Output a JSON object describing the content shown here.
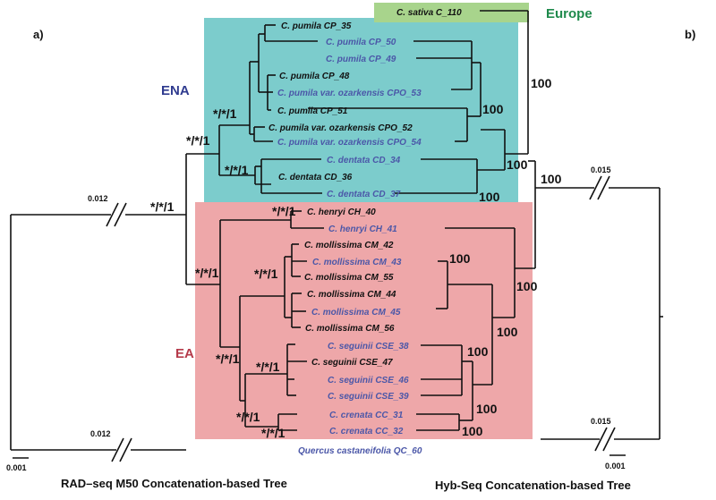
{
  "panels": {
    "a": "a)",
    "b": "b)"
  },
  "regions": {
    "ena": "ENA",
    "ea": "EA",
    "europe": "Europe"
  },
  "colors": {
    "ena_bg": "#7ccccc",
    "ea_bg": "#eea7a9",
    "europe_bg": "#a8d48c",
    "ena_label": "#2f3b8f",
    "ea_label": "#b53a4a",
    "europe_label": "#1f8a4c",
    "taxon_blue": "#4b57a8",
    "taxon_black": "#111111"
  },
  "taxa": [
    {
      "name": "C. sativa C_110",
      "color": "black"
    },
    {
      "name": "C. pumila CP_35",
      "color": "black"
    },
    {
      "name": "C. pumila CP_50",
      "color": "blue"
    },
    {
      "name": "C. pumila CP_49",
      "color": "blue"
    },
    {
      "name": "C. pumila CP_48",
      "color": "black"
    },
    {
      "name": "C. pumila var. ozarkensis CPO_53",
      "color": "blue"
    },
    {
      "name": "C. pumila CP_51",
      "color": "black"
    },
    {
      "name": "C. pumila var. ozarkensis CPO_52",
      "color": "black"
    },
    {
      "name": "C. pumila var. ozarkensis CPO_54",
      "color": "blue"
    },
    {
      "name": "C. dentata CD_34",
      "color": "blue"
    },
    {
      "name": "C. dentata CD_36",
      "color": "black"
    },
    {
      "name": "C. dentata CD_37",
      "color": "blue"
    },
    {
      "name": "C. henryi CH_40",
      "color": "black"
    },
    {
      "name": "C. henryi CH_41",
      "color": "blue"
    },
    {
      "name": "C. mollissima CM_42",
      "color": "black"
    },
    {
      "name": "C. mollissima CM_43",
      "color": "blue"
    },
    {
      "name": "C. mollissima CM_55",
      "color": "black"
    },
    {
      "name": "C. mollissima CM_44",
      "color": "black"
    },
    {
      "name": "C. mollissima CM_45",
      "color": "blue"
    },
    {
      "name": "C. mollissima CM_56",
      "color": "black"
    },
    {
      "name": "C. seguinii CSE_38",
      "color": "blue"
    },
    {
      "name": "C. seguinii CSE_47",
      "color": "black"
    },
    {
      "name": "C. seguinii CSE_46",
      "color": "blue"
    },
    {
      "name": "C. seguinii CSE_39",
      "color": "blue"
    },
    {
      "name": "C. crenata CC_31",
      "color": "blue"
    },
    {
      "name": "C. crenata CC_32",
      "color": "blue"
    },
    {
      "name": "Quercus castaneifolia QC_60",
      "color": "blue"
    }
  ],
  "support_left": {
    "root": "*/*/1",
    "ena_ea": "*/*/1",
    "ena": "*/*/1",
    "dentata": "*/*/1",
    "henryi": "*/*/1",
    "ea_core": "*/*/1",
    "mollissima": "*/*/1",
    "ea_inner": "*/*/1",
    "seguinii": "*/*/1",
    "crenata_a": "*/*/1",
    "crenata_b": "*/*/1"
  },
  "support_right": {
    "sativa": "100",
    "ena_root": "100",
    "ena_a": "100",
    "ena_b": "100",
    "ena_c": "100",
    "mol_a": "100",
    "mol_b": "100",
    "ea_a": "100",
    "seg": "100",
    "cre_a": "100",
    "cre_b": "100"
  },
  "branch_labels": {
    "left_top": "0.012",
    "left_bottom": "0.012",
    "right_top": "0.015",
    "right_bottom": "0.015"
  },
  "scale": {
    "left": "0.001",
    "right": "0.001"
  },
  "titles": {
    "left": "RAD–seq M50  Concatenation-based Tree",
    "right": "Hyb-Seq  Concatenation-based Tree"
  }
}
